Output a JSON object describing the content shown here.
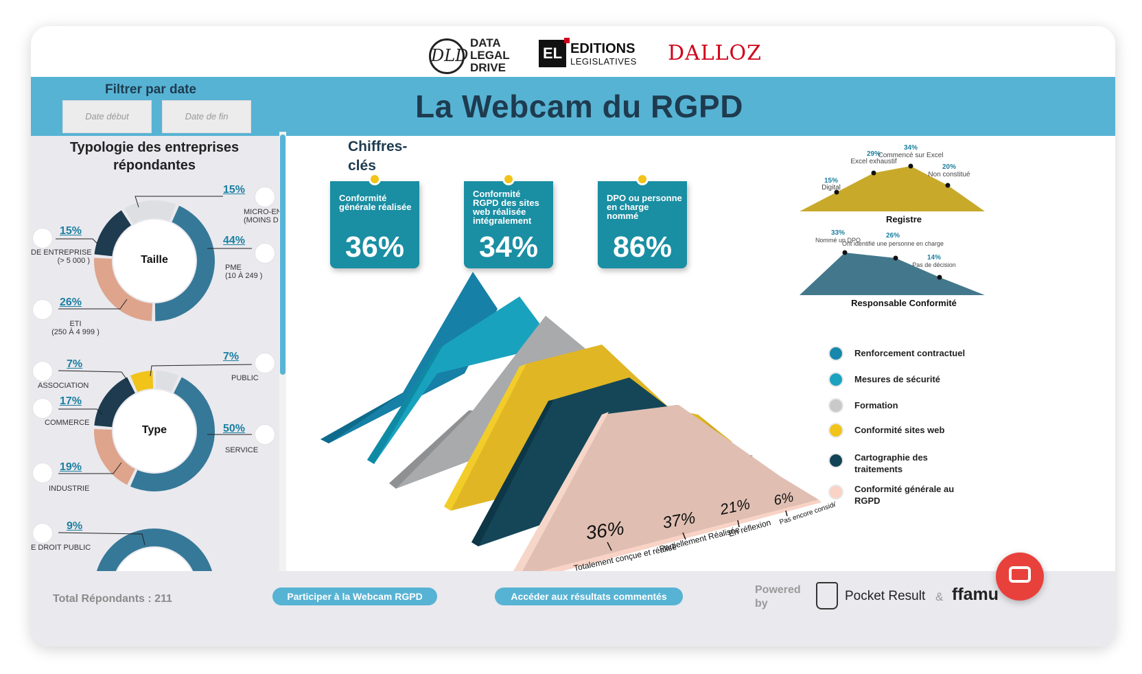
{
  "logos": {
    "dld_mark": "DLD",
    "dld_lines": [
      "DATA",
      "LEGAL",
      "DRIVE"
    ],
    "el_mark": "EL",
    "el_line1": "EDITIONS",
    "el_line2": "LEGISLATIVES",
    "dalloz": "DALLOZ"
  },
  "header": {
    "filter_label": "Filtrer par date",
    "date_start_placeholder": "Date début",
    "date_end_placeholder": "Date de fin",
    "title": "La Webcam du RGPD"
  },
  "sidebar": {
    "title": "Typologie des entreprises répondantes",
    "donut_taille": {
      "center": "Taille",
      "items": [
        {
          "pct": "15%",
          "cat": "MICRO-EN\n(MOINS D",
          "share": 15,
          "color": "#dedfe3"
        },
        {
          "pct": "44%",
          "cat": "PME\n(10 À 249 )",
          "share": 44,
          "color": "#367898"
        },
        {
          "pct": "26%",
          "cat": "ETI\n(250 À 4 999 )",
          "share": 26,
          "color": "#dea48c"
        },
        {
          "pct": "15%",
          "cat": "DE ENTREPRISE\n(> 5 000 )",
          "share": 15,
          "color": "#1e3b4f"
        }
      ]
    },
    "donut_type": {
      "center": "Type",
      "items": [
        {
          "pct": "7%",
          "cat": "PUBLIC",
          "share": 7,
          "color": "#dedfe3"
        },
        {
          "pct": "50%",
          "cat": "SERVICE",
          "share": 50,
          "color": "#367898"
        },
        {
          "pct": "19%",
          "cat": "INDUSTRIE",
          "share": 19,
          "color": "#dea48c"
        },
        {
          "pct": "17%",
          "cat": "COMMERCE",
          "share": 17,
          "color": "#1e3b4f"
        },
        {
          "pct": "7%",
          "cat": "ASSOCIATION",
          "share": 7,
          "color": "#f2c318"
        }
      ]
    },
    "donut_third": {
      "items": [
        {
          "pct": "9%",
          "cat": "E DROIT PUBLIC"
        }
      ]
    }
  },
  "key_figures": {
    "title": "Chiffres-clés",
    "cards": [
      {
        "label": "Conformité générale réalisée",
        "value": "36%"
      },
      {
        "label": "Conformité RGPD des sites web réalisée intégralement",
        "value": "34%"
      },
      {
        "label": "DPO ou personne en charge nommé",
        "value": "86%"
      }
    ]
  },
  "registre": {
    "title": "Registre",
    "points": [
      {
        "pct": "15%",
        "label": "Digital"
      },
      {
        "pct": "29%",
        "label": "Excel exhaustif"
      },
      {
        "pct": "34%",
        "label": "Commencé sur Excel"
      },
      {
        "pct": "20%",
        "label": "Non constitué"
      }
    ],
    "color": "#c8a92a"
  },
  "responsable": {
    "title": "Responsable Conformité",
    "points": [
      {
        "pct": "33%",
        "label": "Nommé un DPO"
      },
      {
        "pct": "26%",
        "label": "Ont identifié une personne en charge"
      },
      {
        "pct": "14%",
        "label": "Pas de décision"
      }
    ],
    "color": "#43788c"
  },
  "mountains": {
    "front_values": [
      "36%",
      "37%",
      "21%",
      "6%"
    ],
    "front_labels": [
      "Totalement conçue et réalisé",
      "Partiellement Réalisée",
      "En réflexion",
      "Pas encore considéré"
    ]
  },
  "legend": [
    {
      "label": "Renforcement contractuel",
      "color": "#1788ab"
    },
    {
      "label": "Mesures de sécurité",
      "color": "#1ba3bf"
    },
    {
      "label": "Formation",
      "color": "#c9c9c9"
    },
    {
      "label": "Conformité sites web",
      "color": "#f2c318"
    },
    {
      "label": "Cartographie des traitements",
      "color": "#134356"
    },
    {
      "label": "Conformité générale au RGPD",
      "color": "#f8d3c6"
    }
  ],
  "footer": {
    "total": "Total Répondants : 211",
    "participate": "Participer à la Webcam RGPD",
    "results": "Accéder aux résultats commentés",
    "powered": "Powered by",
    "pocket": "Pocket Result",
    "amp": "&",
    "amu": "ffamu"
  }
}
